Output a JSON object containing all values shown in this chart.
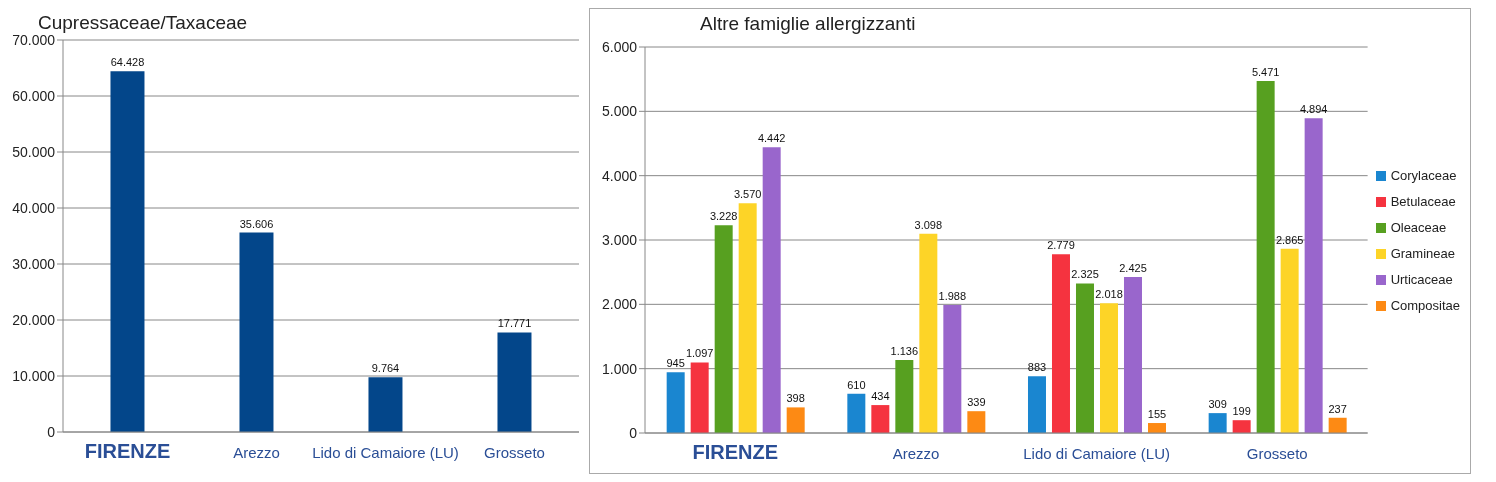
{
  "chart_data": [
    {
      "type": "bar",
      "title": "Cupressaceae/Taxaceae",
      "categories": [
        "FIRENZE",
        "Arezzo",
        "Lido di Camaiore (LU)",
        "Grosseto"
      ],
      "series": [
        {
          "color": "#03468a",
          "values": [
            64428,
            35606,
            9764,
            17771
          ],
          "value_labels": [
            "64.428",
            "35.606",
            "9.764",
            "17.771"
          ]
        }
      ],
      "ylim": [
        0,
        70000
      ],
      "yticks": [
        {
          "value": 0,
          "label": "0"
        },
        {
          "value": 10000,
          "label": "10.000"
        },
        {
          "value": 20000,
          "label": "20.000"
        },
        {
          "value": 30000,
          "label": "30.000"
        },
        {
          "value": 40000,
          "label": "40.000"
        },
        {
          "value": 50000,
          "label": "50.000"
        },
        {
          "value": 60000,
          "label": "60.000"
        },
        {
          "value": 70000,
          "label": "70.000"
        }
      ],
      "grid": "y",
      "legend": false
    },
    {
      "type": "bar",
      "title": "Altre famiglie allergizzanti",
      "categories": [
        "FIRENZE",
        "Arezzo",
        "Lido di Camaiore (LU)",
        "Grosseto"
      ],
      "series": [
        {
          "name": "Corylaceae",
          "color": "#1a86d0",
          "values": [
            945,
            610,
            883,
            309
          ],
          "value_labels": [
            "945",
            "610",
            "883",
            "309"
          ]
        },
        {
          "name": "Betulaceae",
          "color": "#f5333f",
          "values": [
            1097,
            434,
            2779,
            199
          ],
          "value_labels": [
            "1.097",
            "434",
            "2.779",
            "199"
          ]
        },
        {
          "name": "Oleaceae",
          "color": "#57a020",
          "values": [
            3228,
            1136,
            2325,
            5471
          ],
          "value_labels": [
            "3.228",
            "1.136",
            "2.325",
            "5.471"
          ]
        },
        {
          "name": "Gramineae",
          "color": "#fdd427",
          "values": [
            3570,
            3098,
            2018,
            2865
          ],
          "value_labels": [
            "3.570",
            "3.098",
            "2.018",
            "2.865"
          ]
        },
        {
          "name": "Urticaceae",
          "color": "#9966cc",
          "values": [
            4442,
            1988,
            2425,
            4894
          ],
          "value_labels": [
            "4.442",
            "1.988",
            "2.425",
            "4.894"
          ]
        },
        {
          "name": "Compositae",
          "color": "#fd8a14",
          "values": [
            398,
            339,
            155,
            237
          ],
          "value_labels": [
            "398",
            "339",
            "155",
            "237"
          ]
        }
      ],
      "ylim": [
        0,
        6000
      ],
      "yticks": [
        {
          "value": 0,
          "label": "0"
        },
        {
          "value": 1000,
          "label": "1.000"
        },
        {
          "value": 2000,
          "label": "2.000"
        },
        {
          "value": 3000,
          "label": "3.000"
        },
        {
          "value": 4000,
          "label": "4.000"
        },
        {
          "value": 5000,
          "label": "5.000"
        },
        {
          "value": 6000,
          "label": "6.000"
        }
      ],
      "grid": "y",
      "legend": "right"
    }
  ]
}
